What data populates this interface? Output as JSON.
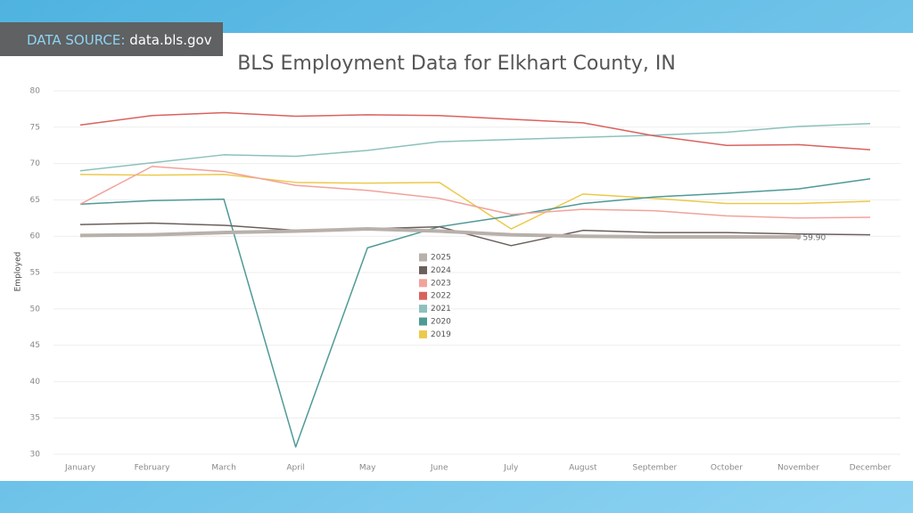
{
  "source_label": "DATA SOURCE:",
  "source_value": "data.bls.gov",
  "chart_data": {
    "type": "line",
    "title": "BLS Employment Data for Elkhart County, IN",
    "y_label": "Employed",
    "categories": [
      "January",
      "February",
      "March",
      "April",
      "May",
      "June",
      "July",
      "August",
      "September",
      "October",
      "November",
      "December"
    ],
    "ylim": [
      29,
      81
    ],
    "yticks": [
      30,
      35,
      40,
      45,
      50,
      55,
      60,
      65,
      70,
      75,
      80
    ],
    "grid": true,
    "legend": "center",
    "series": [
      {
        "name": "2025",
        "color": "#b8b0aa",
        "values": [
          60.1,
          60.2,
          60.5,
          60.7,
          61.0,
          60.7,
          60.2,
          60.0,
          59.9,
          59.9,
          59.9,
          null
        ],
        "value_labels": [
          null,
          null,
          null,
          null,
          null,
          null,
          null,
          null,
          null,
          null,
          "59.90",
          null
        ]
      },
      {
        "name": "2024",
        "color": "#6b5f5c",
        "values": [
          61.6,
          61.8,
          61.5,
          60.8,
          61.0,
          61.3,
          58.7,
          60.8,
          60.5,
          60.5,
          60.3,
          60.2
        ]
      },
      {
        "name": "2023",
        "color": "#f2a29b",
        "values": [
          64.4,
          69.6,
          68.9,
          67.0,
          66.3,
          65.2,
          63.0,
          63.7,
          63.5,
          62.8,
          62.5,
          62.6
        ]
      },
      {
        "name": "2022",
        "color": "#d9625f",
        "values": [
          75.3,
          76.6,
          77.0,
          76.5,
          76.7,
          76.6,
          76.1,
          75.6,
          73.8,
          72.5,
          72.6,
          71.9
        ]
      },
      {
        "name": "2021",
        "color": "#8cc1bd",
        "values": [
          69.0,
          70.1,
          71.2,
          71.0,
          71.8,
          73.0,
          73.3,
          73.6,
          73.9,
          74.3,
          75.1,
          75.5
        ]
      },
      {
        "name": "2020",
        "color": "#4f9a96",
        "values": [
          64.4,
          64.9,
          65.1,
          31.0,
          58.4,
          61.3,
          62.8,
          64.5,
          65.4,
          65.9,
          66.5,
          67.9
        ]
      },
      {
        "name": "2019",
        "color": "#ecc94b",
        "values": [
          68.5,
          68.4,
          68.5,
          67.4,
          67.3,
          67.4,
          61.0,
          65.8,
          65.2,
          64.5,
          64.5,
          64.8
        ]
      }
    ]
  }
}
